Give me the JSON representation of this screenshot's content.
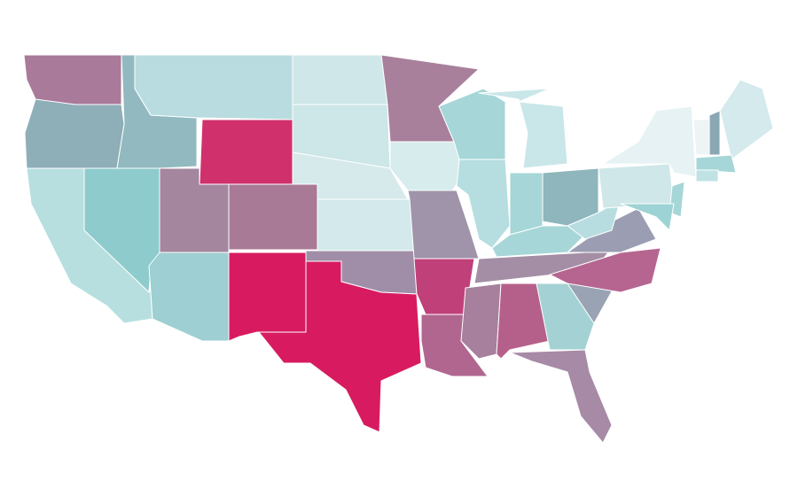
{
  "map": {
    "type": "choropleth",
    "fills": [
      "#a97a9a",
      "#8eaeb8",
      "#b8dfe0",
      "#8ecbcc",
      "#92b9c0",
      "#b8dcdf",
      "#d0306c",
      "#a4869f",
      "#a87a96",
      "#9ecfd2",
      "#d81b60",
      "#cfe7e8",
      "#cde6e7",
      "#d6eaec",
      "#d3e9eb",
      "#a08ea8",
      "#d81b60",
      "#a8809c",
      "#d7eced",
      "#9f94a9",
      "#c0407a",
      "#b0668f",
      "#a6d6d8",
      "#b6dee0",
      "#c9e6e8",
      "#a6d6d8",
      "#8eb6bc",
      "#a6d6d8",
      "#a48ea6",
      "#a6809c",
      "#b5608a",
      "#a4d2d4",
      "#a68aa6",
      "#9aa3b4",
      "#b56590",
      "#9b9db2",
      "#b8dde0",
      "#cfe7e8",
      "#e6f2f3",
      "#eef3f4",
      "#8aa7b4",
      "#d4eaec",
      "#a6d6d8",
      "#c1e2e4",
      "#a6d6d8",
      "#9ed3d6"
    ]
  }
}
